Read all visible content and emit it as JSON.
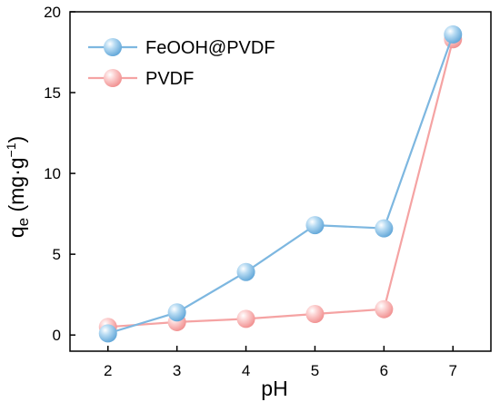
{
  "chart_data": {
    "type": "line",
    "x": [
      2,
      3,
      4,
      5,
      6,
      7
    ],
    "series": [
      {
        "name": "FeOOH@PVDF",
        "values": [
          0.1,
          1.4,
          3.9,
          6.8,
          6.6,
          18.6
        ],
        "color": "#7db7e0"
      },
      {
        "name": "PVDF",
        "values": [
          0.5,
          0.8,
          1.0,
          1.3,
          1.6,
          18.3
        ],
        "color": "#f5a3a3"
      }
    ],
    "xlabel": "pH",
    "ylabel": {
      "main": "q",
      "sub": "e",
      "units_open": " (mg·g",
      "units_sup": "−1",
      "units_close": ")"
    },
    "xlim": [
      1.45,
      7.55
    ],
    "ylim": [
      -1,
      20
    ],
    "xticks": [
      "2",
      "3",
      "4",
      "5",
      "6",
      "7"
    ],
    "yticks": [
      "0",
      "5",
      "10",
      "15",
      "20"
    ],
    "grid": false,
    "legend_position": "top-left"
  }
}
